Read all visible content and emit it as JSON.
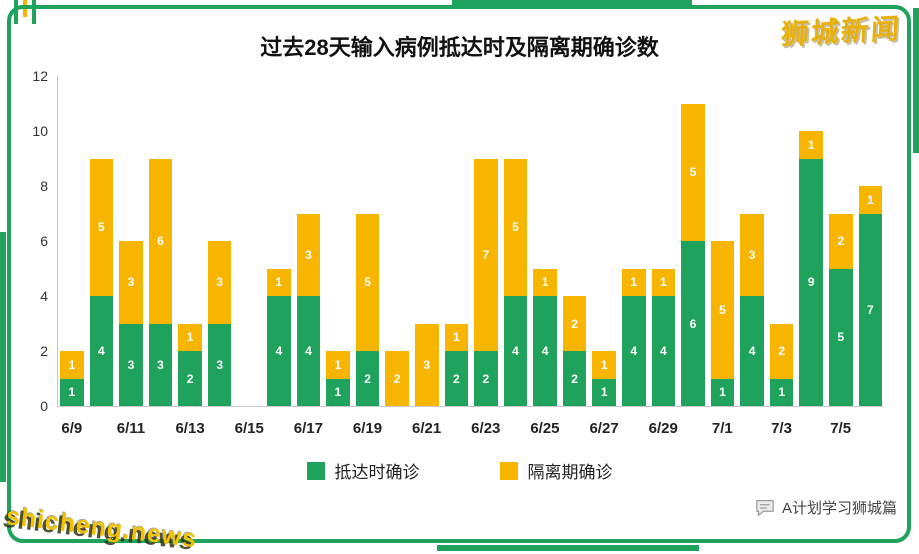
{
  "branding": {
    "logo_text": "狮城新闻",
    "watermark": "shicheng.news",
    "footer_right": "A计划学习狮城篇"
  },
  "colors": {
    "green": "#1fa35c",
    "yellow": "#f8b500",
    "axis": "#c9c9c9",
    "bar_label": "#ffffff"
  },
  "chart_data": {
    "type": "bar",
    "stacked": true,
    "title": "过去28天输入病例抵达时及隔离期确诊数",
    "xlabel": "",
    "ylabel": "",
    "ylim": [
      0,
      12
    ],
    "yticks": [
      0,
      2,
      4,
      6,
      8,
      10,
      12
    ],
    "grid": false,
    "legend_position": "bottom",
    "categories": [
      "6/9",
      "6/10",
      "6/11",
      "6/12",
      "6/13",
      "6/14",
      "6/15",
      "6/16",
      "6/17",
      "6/18",
      "6/19",
      "6/20",
      "6/21",
      "6/22",
      "6/23",
      "6/24",
      "6/25",
      "6/26",
      "6/27",
      "6/28",
      "6/29",
      "6/30",
      "7/1",
      "7/2",
      "7/3",
      "7/4",
      "7/5",
      "7/6"
    ],
    "x_tick_labels": [
      "6/9",
      "6/11",
      "6/13",
      "6/15",
      "6/17",
      "6/19",
      "6/21",
      "6/23",
      "6/25",
      "6/27",
      "6/29",
      "7/1",
      "7/3",
      "7/5"
    ],
    "x_tick_every": 2,
    "series": [
      {
        "name": "抵达时确诊",
        "color": "#1fa35c",
        "values": [
          1,
          4,
          3,
          3,
          2,
          3,
          0,
          4,
          4,
          1,
          2,
          0,
          0,
          2,
          2,
          4,
          4,
          2,
          1,
          4,
          4,
          6,
          1,
          4,
          1,
          9,
          5,
          7
        ]
      },
      {
        "name": "隔离期确诊",
        "color": "#f8b500",
        "values": [
          1,
          5,
          3,
          6,
          1,
          3,
          0,
          1,
          3,
          1,
          5,
          2,
          3,
          1,
          7,
          5,
          1,
          2,
          1,
          1,
          1,
          5,
          5,
          3,
          2,
          1,
          2,
          1
        ]
      }
    ]
  }
}
